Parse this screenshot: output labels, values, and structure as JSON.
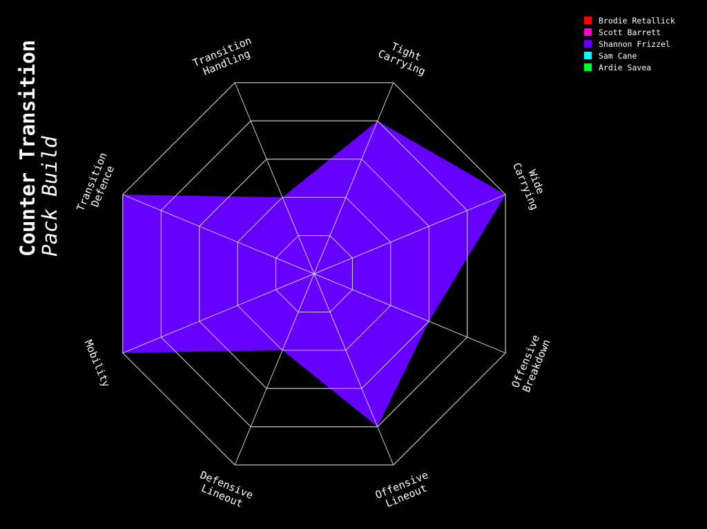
{
  "chart_data": {
    "type": "radar",
    "title": "Counter Transition",
    "subtitle": "Pack Build",
    "axes": [
      "Transition Handling",
      "Tight Carrying",
      "Wide Carrying",
      "Offensive Breakdown",
      "Offensive Lineout",
      "Defensive Lineout",
      "Mobility",
      "Transition Defence"
    ],
    "axis_label_lines": [
      [
        "Transition",
        "Handling"
      ],
      [
        "Tight",
        "Carrying"
      ],
      [
        "Wide",
        "Carrying"
      ],
      [
        "Offensive",
        "Breakdown"
      ],
      [
        "Offensive",
        "Lineout"
      ],
      [
        "Defensive",
        "Lineout"
      ],
      [
        "Mobility"
      ],
      [
        "Transition",
        "Defence"
      ]
    ],
    "rlim": [
      0,
      5
    ],
    "grid_levels": [
      1,
      2,
      3,
      4,
      5
    ],
    "series": [
      {
        "name": "Brodie Retallick",
        "color": "#ff0000",
        "values": null
      },
      {
        "name": "Scott Barrett",
        "color": "#ff00cc",
        "values": null
      },
      {
        "name": "Shannon Frizzel",
        "color": "#6600ff",
        "values": [
          2,
          4,
          5,
          3,
          4,
          2,
          5,
          5
        ]
      },
      {
        "name": "Sam Cane",
        "color": "#00ffff",
        "values": null
      },
      {
        "name": "Ardie Savea",
        "color": "#00ff33",
        "values": null
      }
    ],
    "legend_position": "top-right",
    "grid": true,
    "grid_color": "#cccccc",
    "background": "#000000"
  }
}
